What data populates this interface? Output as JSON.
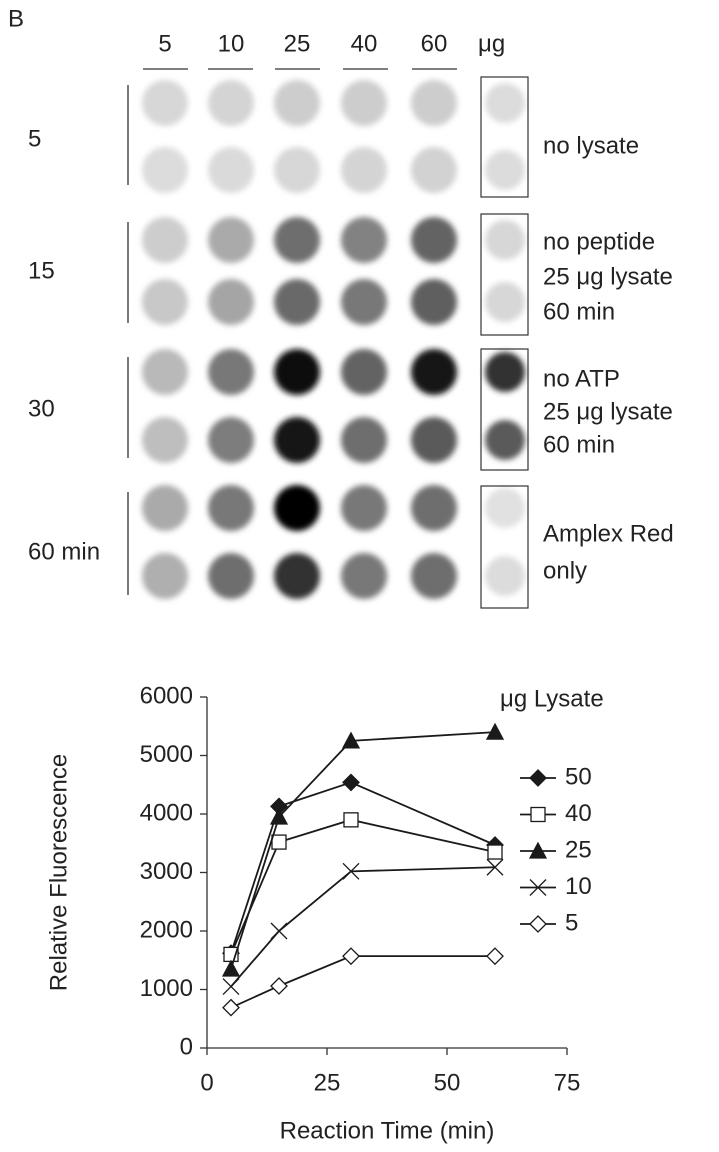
{
  "blot": {
    "panel_label": "B",
    "columns": [
      "5",
      "10",
      "25",
      "40",
      "60"
    ],
    "unit": "μg",
    "rows": [
      "5",
      "15",
      "30",
      "60 min"
    ],
    "controls": [
      [
        "no lysate"
      ],
      [
        "no peptide",
        "25 μg lysate",
        "60 min"
      ],
      [
        "no ATP",
        "25 μg lysate",
        "60 min"
      ],
      [
        "Amplex Red",
        "only"
      ]
    ]
  },
  "chart_data": {
    "type": "line",
    "x_label": "Reaction Time (min)",
    "y_label": "Relative Fluorescence",
    "legend_title": "μg Lysate",
    "legend": "right",
    "x": [
      5,
      15,
      30,
      60
    ],
    "series": [
      {
        "name": "50",
        "color": "#1a1a1a",
        "marker": "diamond",
        "filled": true,
        "values": [
          1620,
          4130,
          4540,
          3470
        ]
      },
      {
        "name": "40",
        "color": "#1a1a1a",
        "marker": "square",
        "filled": false,
        "values": [
          1600,
          3520,
          3900,
          3350
        ]
      },
      {
        "name": "25",
        "color": "#1a1a1a",
        "marker": "triangle",
        "filled": true,
        "values": [
          1350,
          3950,
          5250,
          5400
        ]
      },
      {
        "name": "10",
        "color": "#1a1a1a",
        "marker": "x",
        "filled": false,
        "values": [
          1050,
          2000,
          3020,
          3090
        ]
      },
      {
        "name": "5",
        "color": "#1a1a1a",
        "marker": "diamond",
        "filled": false,
        "values": [
          690,
          1060,
          1570,
          1570
        ]
      }
    ],
    "xlim": [
      0,
      75
    ],
    "xticks": [
      0,
      25,
      50,
      75
    ],
    "ylim": [
      0,
      6000
    ],
    "yticks": [
      0,
      1000,
      2000,
      3000,
      4000,
      5000,
      6000
    ],
    "grid": false
  }
}
